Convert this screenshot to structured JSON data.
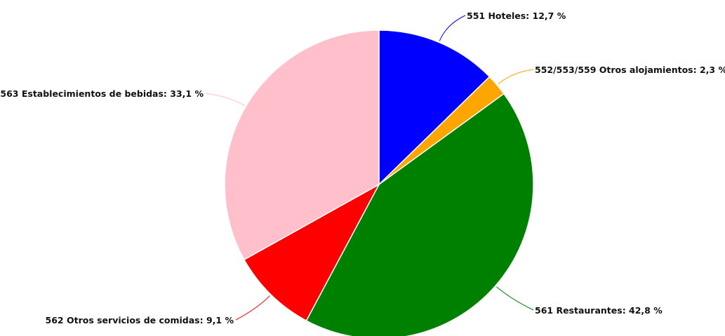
{
  "chart_data": {
    "type": "pie",
    "start_angle": "top",
    "direction": "clockwise",
    "slices": [
      {
        "label": "551 Hoteles: 12,7 %",
        "value": 12.7,
        "color": "#0000ff"
      },
      {
        "label": "552/553/559 Otros alojamientos: 2,3 %",
        "value": 2.3,
        "color": "#ffa500"
      },
      {
        "label": "561 Restaurantes: 42,8 %",
        "value": 42.8,
        "color": "#008000"
      },
      {
        "label": "562 Otros servicios de comidas: 9,1 %",
        "value": 9.1,
        "color": "#ff0000"
      },
      {
        "label": "563 Establecimientos de bebidas: 33,1 %",
        "value": 33.1,
        "color": "#ffc0cb"
      }
    ]
  }
}
